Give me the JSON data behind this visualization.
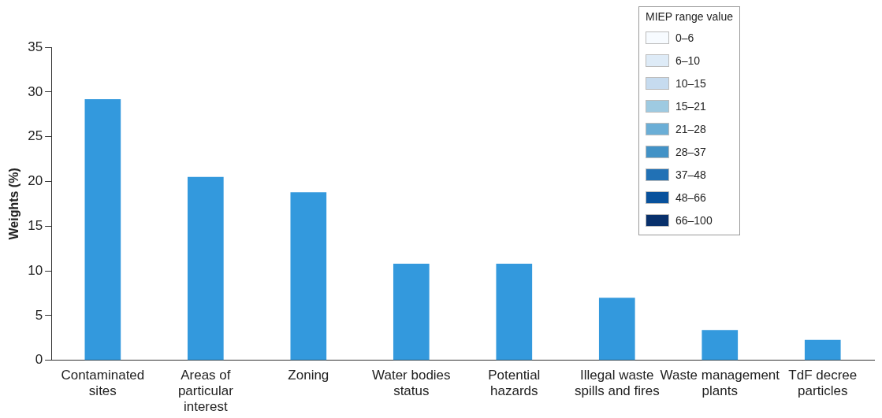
{
  "chart_data": {
    "type": "bar",
    "ylabel": "Weights (%)",
    "categories": [
      "Contaminated sites",
      "Areas of particular interest",
      "Zoning",
      "Water bodies status",
      "Potential hazards",
      "Illegal waste spills and fires",
      "Waste management plants",
      "TdF decree particles"
    ],
    "series": [
      {
        "color": "#3399dd",
        "values": [
          29.2,
          20.5,
          18.8,
          10.8,
          10.8,
          7.0,
          3.4,
          2.3
        ]
      },
      {
        "name": "0–6",
        "color": "#f7fbff",
        "values": [
          null,
          null,
          null,
          null,
          null,
          null,
          null,
          null
        ]
      },
      {
        "name": "6–10",
        "color": "#deebf7",
        "values": [
          null,
          null,
          null,
          null,
          null,
          null,
          null,
          null
        ]
      },
      {
        "name": "10–15",
        "color": "#c6dbef",
        "values": [
          null,
          null,
          null,
          null,
          null,
          null,
          null,
          null
        ]
      },
      {
        "name": "15–21",
        "color": "#9ecae1",
        "values": [
          null,
          null,
          null,
          null,
          null,
          null,
          null,
          null
        ]
      },
      {
        "name": "21–28",
        "color": "#6baed6",
        "values": [
          null,
          null,
          null,
          null,
          null,
          null,
          null,
          null
        ]
      },
      {
        "name": "28–37",
        "color": "#4292c6",
        "values": [
          null,
          null,
          null,
          null,
          null,
          null,
          null,
          null
        ]
      },
      {
        "name": "37–48",
        "color": "#2171b5",
        "values": [
          null,
          null,
          null,
          null,
          null,
          null,
          null,
          null
        ]
      },
      {
        "name": "48–66",
        "color": "#08519c",
        "values": [
          null,
          null,
          null,
          null,
          null,
          null,
          null,
          null
        ]
      },
      {
        "name": "66–100",
        "color": "#08306b",
        "values": [
          null,
          null,
          null,
          null,
          null,
          null,
          null,
          null
        ]
      }
    ],
    "ylim": [
      0,
      35
    ],
    "yticks": [
      0,
      5,
      10,
      15,
      20,
      25,
      30,
      35
    ],
    "grid": false,
    "legend": "top right",
    "legend_title": "MIEP range value"
  }
}
